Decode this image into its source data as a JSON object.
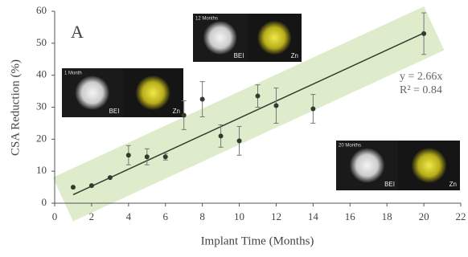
{
  "chart_data": {
    "type": "scatter",
    "panel_label": "A",
    "x_label": "Implant Time (Months)",
    "y_label": "CSA Reduction (%)",
    "xlim": [
      0,
      22
    ],
    "xticks": [
      0,
      2,
      4,
      6,
      8,
      10,
      12,
      14,
      16,
      18,
      20,
      22
    ],
    "ylim": [
      0,
      60
    ],
    "yticks": [
      0,
      10,
      20,
      30,
      40,
      50,
      60
    ],
    "color": "#2f3d2f",
    "band_color": "#dfeccb",
    "x": [
      1,
      2,
      3,
      4,
      5,
      6,
      7,
      8,
      9,
      10,
      11,
      12,
      14,
      20
    ],
    "values": [
      5,
      5.5,
      8,
      15,
      14.5,
      14.5,
      27.5,
      32.5,
      21,
      19.5,
      33.5,
      30.5,
      29.5,
      53
    ],
    "errors": [
      null,
      null,
      null,
      3,
      2.5,
      1,
      4.5,
      5.5,
      3.5,
      4.5,
      3.5,
      5.5,
      4.5,
      6.5
    ],
    "trendline": {
      "slope": 2.66,
      "x": [
        1,
        20
      ]
    },
    "annotations": [
      "y = 2.66x",
      "R² = 0.84"
    ],
    "insets": [
      {
        "title": "1 Month",
        "left": "BEI",
        "right": "Zn"
      },
      {
        "title": "12 Months",
        "left": "BEI",
        "right": "Zn"
      },
      {
        "title": "20 Months",
        "left": "BEI",
        "right": "Zn"
      }
    ]
  }
}
